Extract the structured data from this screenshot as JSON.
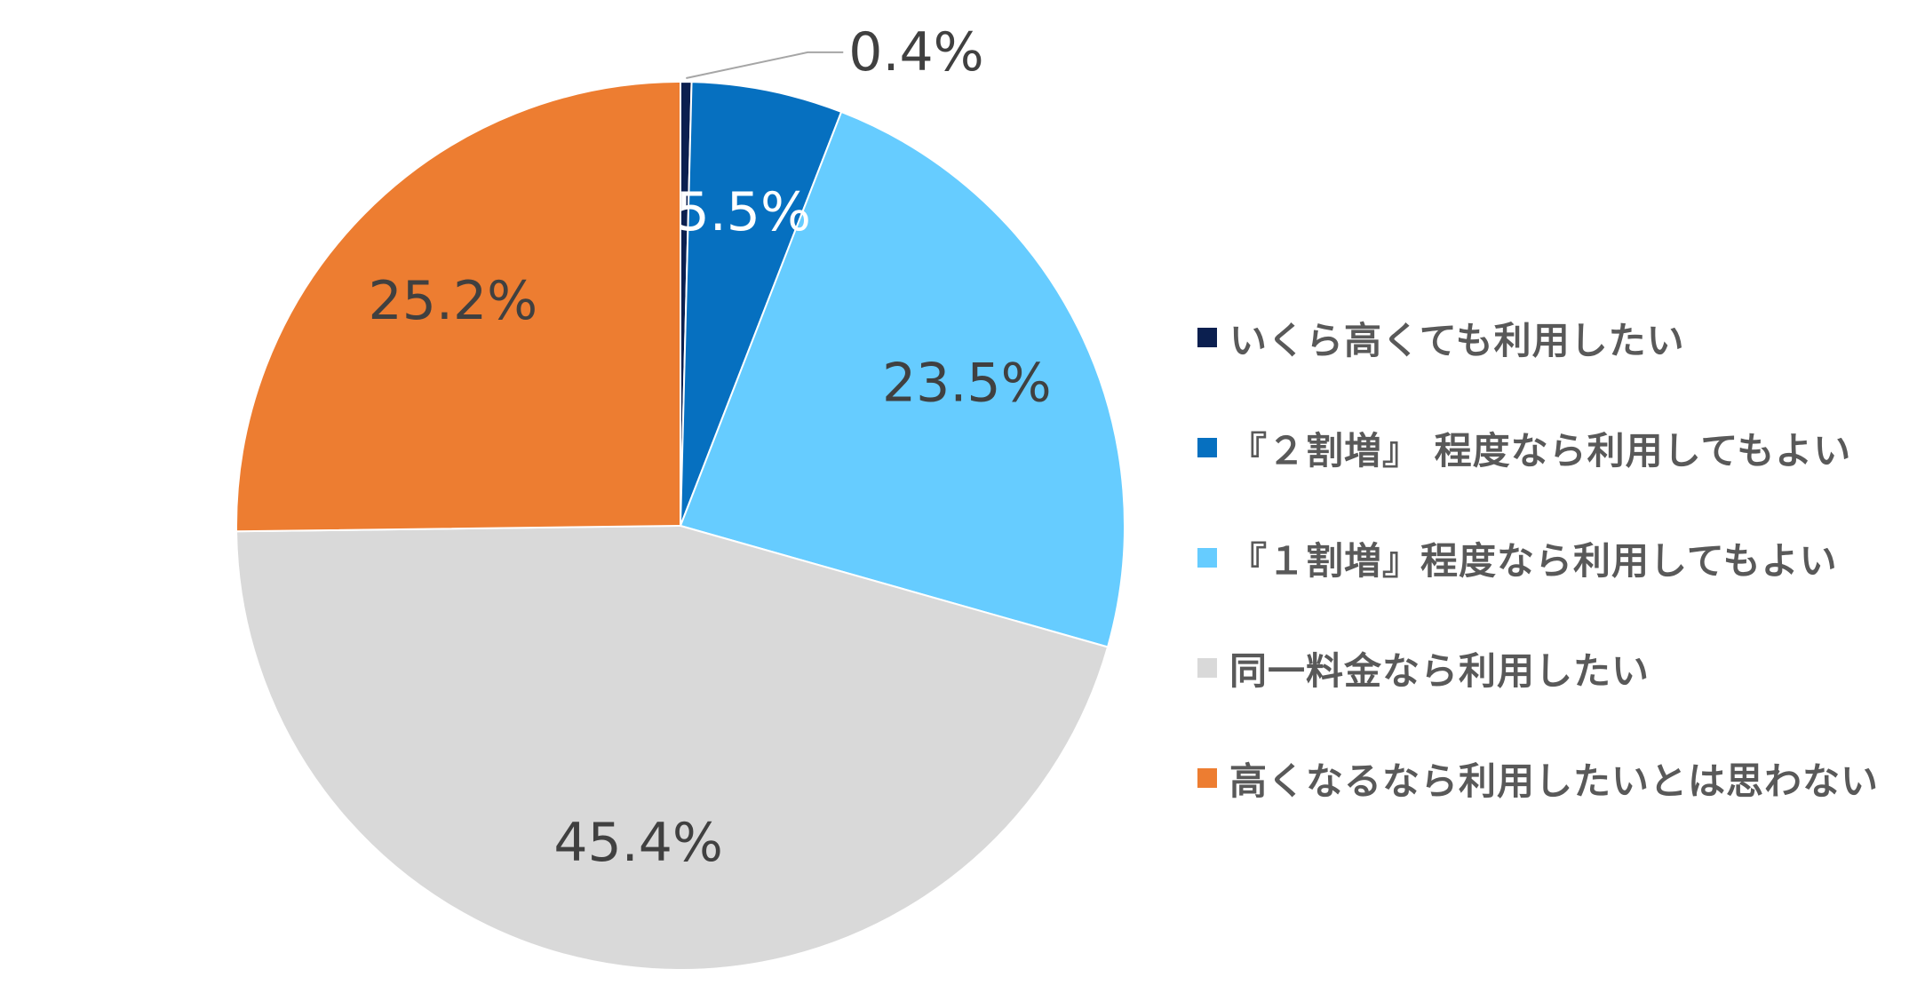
{
  "chart_data": {
    "type": "pie",
    "title": "",
    "legend_position": "right",
    "start_angle_deg": 0,
    "direction": "clockwise",
    "slices": [
      {
        "label": "いくら高くても利用したい",
        "value": 0.4,
        "value_label": "0.4%",
        "color": "#0B1F4F",
        "label_style": "leader-line"
      },
      {
        "label": "『２割増』 程度なら利用してもよい",
        "value": 5.5,
        "value_label": "5.5%",
        "color": "#0670C0",
        "label_style": "light"
      },
      {
        "label": "『１割増』程度なら利用してもよい",
        "value": 23.5,
        "value_label": "23.5%",
        "color": "#66CCFF",
        "label_style": "dark"
      },
      {
        "label": "同一料金なら利用したい",
        "value": 45.4,
        "value_label": "45.4%",
        "color": "#D9D9D9",
        "label_style": "dark"
      },
      {
        "label": "高くなるなら利用したいとは思わない",
        "value": 25.2,
        "value_label": "25.2%",
        "color": "#ED7D31",
        "label_style": "dark"
      }
    ]
  }
}
